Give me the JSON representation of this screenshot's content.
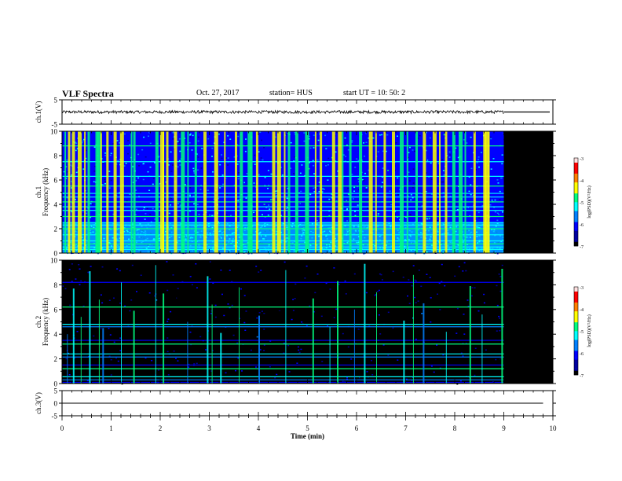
{
  "header": {
    "title": "VLF Spectra",
    "date": "Oct. 27, 2017",
    "station": "station= HUS",
    "start": "start  UT =   10: 50: 2"
  },
  "chart_data": [
    {
      "id": "ch1-waveform",
      "type": "line",
      "ylabel": "ch.1(V)",
      "ylim": [
        -5,
        5
      ],
      "yticks": [
        "5",
        "-5"
      ],
      "xlim": [
        0,
        10
      ],
      "data_end_min": 9.0,
      "baseline_v": 0,
      "trace_end_v": 0,
      "noise_amplitude_v": 0.6
    },
    {
      "id": "ch1-spectrogram",
      "type": "heatmap",
      "channel_label": "ch.1",
      "ylabel": "Frequency (kHz)",
      "ylim": [
        0,
        10
      ],
      "yticks": [
        "0",
        "2",
        "4",
        "6",
        "8",
        "10"
      ],
      "xlim": [
        0,
        10
      ],
      "data_end_min": 9.0,
      "colorbar": {
        "label": "log(PSD)(V²/Hz)",
        "range": [
          -7,
          -3
        ],
        "ticks": [
          "-3",
          "-4",
          "-5",
          "-6",
          "-7"
        ]
      },
      "background_level": -6.1,
      "hiss_band_khz": [
        0,
        2.5
      ],
      "hiss_level": -5.3,
      "horizontal_lines_khz": [
        0.3,
        0.5,
        0.75,
        1.0,
        1.5,
        2.0,
        2.3,
        2.5,
        3.0,
        3.5,
        3.8,
        4.2,
        4.6,
        4.9,
        5.5,
        6.3,
        7.5,
        8.8
      ],
      "burst_times_min": [
        0.05,
        0.12,
        0.2,
        0.32,
        0.45,
        0.52,
        0.68,
        0.72,
        0.78,
        0.9,
        1.05,
        1.18,
        1.4,
        1.45,
        1.9,
        2.0,
        2.05,
        2.12,
        2.28,
        2.42,
        2.55,
        2.7,
        2.88,
        3.1,
        3.3,
        3.52,
        3.62,
        3.78,
        3.85,
        3.95,
        4.28,
        4.38,
        4.52,
        4.6,
        4.75,
        4.95,
        5.15,
        5.25,
        5.5,
        5.62,
        5.7,
        5.85,
        6.05,
        6.25,
        6.38,
        6.55,
        6.72,
        6.88,
        7.02,
        7.2,
        7.35,
        7.55,
        7.68,
        7.8,
        7.95,
        8.08,
        8.2,
        8.38,
        8.58,
        8.62,
        8.68
      ]
    },
    {
      "id": "ch2-spectrogram",
      "type": "heatmap",
      "channel_label": "ch.2",
      "ylabel": "Frequency (kHz)",
      "ylim": [
        0,
        10
      ],
      "yticks": [
        "0",
        "2",
        "4",
        "6",
        "8",
        "10"
      ],
      "xlim": [
        0,
        10
      ],
      "data_end_min": 9.0,
      "colorbar": {
        "label": "log(PSD)(V²/Hz)",
        "range": [
          -7,
          -3
        ],
        "ticks": [
          "-3",
          "-4",
          "-5",
          "-6",
          "-7"
        ]
      },
      "background_level": -7.0,
      "horizontal_lines_khz": [
        0.1,
        0.3,
        0.55,
        1.2,
        1.5,
        2.15,
        2.4,
        3.2,
        3.5,
        4.6,
        4.8,
        6.2,
        8.2
      ],
      "burst_times_min": [
        0.1,
        0.22,
        0.38,
        0.55,
        0.75,
        0.82,
        1.2,
        1.45,
        1.9,
        2.05,
        2.55,
        2.95,
        3.05,
        3.22,
        3.6,
        4.0,
        4.55,
        5.1,
        5.45,
        5.6,
        5.95,
        6.15,
        6.4,
        6.95,
        7.15,
        7.35,
        7.82,
        8.3,
        8.55,
        8.95
      ]
    },
    {
      "id": "ch3-waveform",
      "type": "line",
      "ylabel": "ch.3(V)",
      "ylim": [
        -5,
        5
      ],
      "yticks": [
        "5",
        "0",
        "-5"
      ],
      "xlim": [
        0,
        10
      ],
      "data_end_min": 9.8,
      "baseline_v": 0,
      "noise_amplitude_v": 0
    }
  ],
  "x_axis": {
    "label": "Time (min)",
    "ticks": [
      "0",
      "1",
      "2",
      "3",
      "4",
      "5",
      "6",
      "7",
      "8",
      "9",
      "10"
    ]
  },
  "colors": {
    "axis": "#000000",
    "no_data": "#000000",
    "colormap": [
      "#000000",
      "#0000a0",
      "#0000ff",
      "#0080ff",
      "#00ffff",
      "#00ff80",
      "#ffff00",
      "#ff8000",
      "#ff0000",
      "#ffe0e0"
    ]
  }
}
